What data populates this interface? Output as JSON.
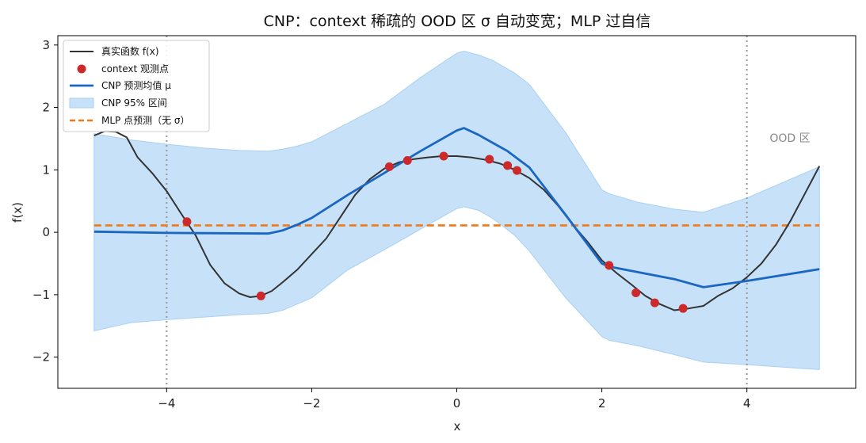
{
  "chart_data": {
    "type": "line",
    "title": "CNP：context 稀疏的 OOD 区 σ 自动变宽；MLP 过自信",
    "xlabel": "x",
    "ylabel": "f(x)",
    "xlim": [
      -5.5,
      5.5
    ],
    "ylim": [
      -2.5,
      3.15
    ],
    "xticks": [
      -4,
      -2,
      0,
      2,
      4
    ],
    "yticks": [
      -2,
      -1,
      0,
      1,
      2,
      3
    ],
    "xtick_labels": [
      "−4",
      "−2",
      "0",
      "2",
      "4"
    ],
    "ytick_labels": [
      "−2",
      "−1",
      "0",
      "1",
      "2",
      "3"
    ],
    "grid": false,
    "legend_position": "top-left",
    "ood_bounds": [
      -4,
      4
    ],
    "ood_label": "OOD 区",
    "colors": {
      "true": "#333333",
      "context": "#cc2a2a",
      "mean": "#1a66c2",
      "band": "#c6e1f8",
      "band_edge": "#a9d0f2",
      "mlp": "#f07818",
      "ood_line": "#999999"
    },
    "series": [
      {
        "name": "真实函数 f(x)",
        "x": [
          -5,
          -4.85,
          -4.7,
          -4.55,
          -4.4,
          -4.2,
          -4,
          -3.8,
          -3.6,
          -3.4,
          -3.2,
          -3,
          -2.85,
          -2.7,
          -2.55,
          -2.4,
          -2.2,
          -2,
          -1.8,
          -1.6,
          -1.4,
          -1.2,
          -1,
          -0.8,
          -0.6,
          -0.4,
          -0.2,
          0,
          0.2,
          0.4,
          0.6,
          0.8,
          1,
          1.2,
          1.4,
          1.6,
          1.8,
          2,
          2.2,
          2.4,
          2.6,
          2.8,
          3,
          3.2,
          3.4,
          3.6,
          3.8,
          4,
          4.2,
          4.4,
          4.6,
          4.8,
          5
        ],
        "y": [
          1.55,
          1.62,
          1.61,
          1.52,
          1.2,
          0.95,
          0.66,
          0.3,
          -0.05,
          -0.52,
          -0.82,
          -0.98,
          -1.04,
          -1.02,
          -0.94,
          -0.8,
          -0.6,
          -0.35,
          -0.1,
          0.25,
          0.6,
          0.85,
          1.02,
          1.12,
          1.17,
          1.2,
          1.22,
          1.22,
          1.2,
          1.16,
          1.1,
          1.0,
          0.87,
          0.68,
          0.42,
          0.12,
          -0.15,
          -0.45,
          -0.65,
          -0.83,
          -1.02,
          -1.15,
          -1.25,
          -1.22,
          -1.18,
          -1.02,
          -0.9,
          -0.72,
          -0.5,
          -0.2,
          0.18,
          0.62,
          1.06
        ]
      },
      {
        "name": "context 观测点",
        "x": [
          -3.72,
          -2.7,
          -0.93,
          -0.68,
          -0.18,
          0.45,
          0.7,
          0.83,
          2.1,
          2.47,
          2.73,
          3.12
        ],
        "y": [
          0.17,
          -1.02,
          1.05,
          1.15,
          1.22,
          1.17,
          1.07,
          0.99,
          -0.53,
          -0.97,
          -1.13,
          -1.22
        ]
      },
      {
        "name": "CNP 预测均值 μ",
        "x": [
          -5,
          -4,
          -2.6,
          -2.4,
          -2.2,
          -2.0,
          -1.5,
          -1.0,
          -0.5,
          0,
          0.1,
          0.3,
          0.5,
          0.7,
          1.0,
          1.5,
          2.0,
          2.1,
          3.0,
          3.4,
          4.0,
          5.0
        ],
        "y": [
          0.01,
          -0.01,
          -0.02,
          0.03,
          0.12,
          0.23,
          0.6,
          0.95,
          1.3,
          1.63,
          1.67,
          1.56,
          1.43,
          1.3,
          1.04,
          0.28,
          -0.5,
          -0.55,
          -0.75,
          -0.88,
          -0.78,
          -0.59
        ]
      },
      {
        "name": "CNP 95% 区间",
        "x": [
          -5,
          -4.5,
          -4,
          -3.5,
          -3,
          -2.6,
          -2.4,
          -2.2,
          -2.0,
          -1.5,
          -1.0,
          -0.5,
          0,
          0.1,
          0.3,
          0.5,
          0.8,
          1.0,
          1.5,
          2.0,
          2.1,
          2.5,
          3.0,
          3.4,
          4.0,
          5.0
        ],
        "lower": [
          -1.58,
          -1.45,
          -1.4,
          -1.36,
          -1.32,
          -1.3,
          -1.25,
          -1.15,
          -1.05,
          -0.6,
          -0.28,
          0.05,
          0.38,
          0.41,
          0.35,
          0.22,
          -0.05,
          -0.3,
          -1.05,
          -1.67,
          -1.73,
          -1.82,
          -1.96,
          -2.08,
          -2.12,
          -2.2
        ],
        "upper": [
          1.58,
          1.48,
          1.41,
          1.35,
          1.31,
          1.3,
          1.33,
          1.38,
          1.45,
          1.75,
          2.05,
          2.48,
          2.87,
          2.9,
          2.84,
          2.75,
          2.55,
          2.37,
          1.6,
          0.68,
          0.62,
          0.48,
          0.37,
          0.32,
          0.55,
          1.05
        ]
      },
      {
        "name": "MLP 点预测（无 σ）",
        "x": [
          -5,
          5
        ],
        "y": [
          0.11,
          0.11
        ]
      }
    ]
  }
}
